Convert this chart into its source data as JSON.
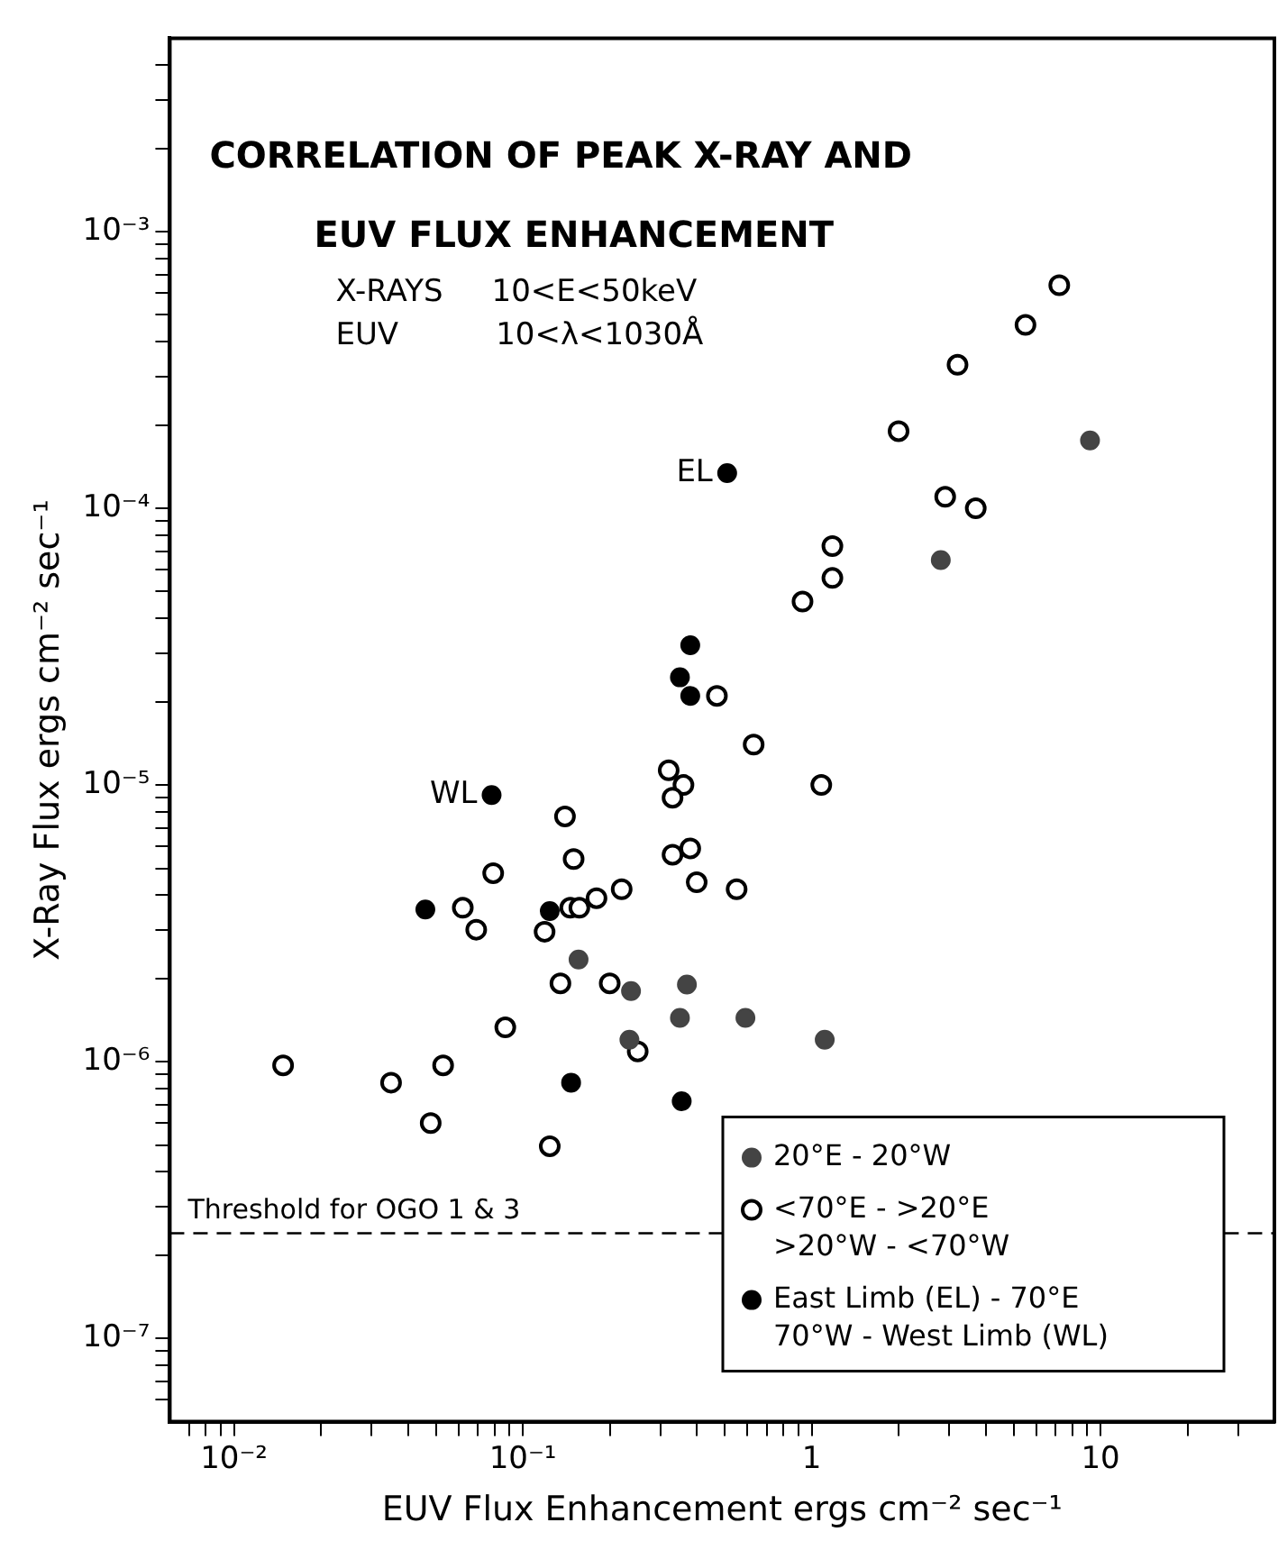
{
  "chart_data": {
    "type": "scatter",
    "title": "CORRELATION OF PEAK X-RAY AND\nEUV FLUX ENHANCEMENT",
    "xlabel": "EUV Flux Enhancement ergs cm⁻² sec⁻¹",
    "ylabel": "X-Ray Flux ergs cm⁻² sec⁻¹",
    "annotations": [
      "X-RAYS     10<E<50keV",
      "EUV          10<λ<1030Å",
      {
        "text": "EL",
        "x": 0.51,
        "y": 0.000134
      },
      {
        "text": "WL",
        "x": 0.078,
        "y": 9.2e-06
      }
    ],
    "log": "xy",
    "grid": false,
    "legend": "bottom right",
    "marker": "circle",
    "xlim": [
      0.006,
      40
    ],
    "ylim": [
      5e-08,
      0.005
    ],
    "xticks": [
      {
        "value": 0.007,
        "label": null
      },
      {
        "value": 0.008,
        "label": null
      },
      {
        "value": 0.009,
        "label": null
      },
      {
        "value": 0.01,
        "label": "10⁻²"
      },
      {
        "value": 0.02,
        "label": null
      },
      {
        "value": 0.03,
        "label": null
      },
      {
        "value": 0.04,
        "label": null
      },
      {
        "value": 0.05,
        "label": null
      },
      {
        "value": 0.06,
        "label": null
      },
      {
        "value": 0.07,
        "label": null
      },
      {
        "value": 0.08,
        "label": null
      },
      {
        "value": 0.09,
        "label": null
      },
      {
        "value": 0.1,
        "label": "10⁻¹"
      },
      {
        "value": 0.2,
        "label": null
      },
      {
        "value": 0.3,
        "label": null
      },
      {
        "value": 0.4,
        "label": null
      },
      {
        "value": 0.5,
        "label": null
      },
      {
        "value": 0.6,
        "label": null
      },
      {
        "value": 0.7,
        "label": null
      },
      {
        "value": 0.8,
        "label": null
      },
      {
        "value": 0.9,
        "label": null
      },
      1,
      {
        "value": 2,
        "label": null
      },
      {
        "value": 3,
        "label": null
      },
      {
        "value": 4,
        "label": null
      },
      {
        "value": 5,
        "label": null
      },
      {
        "value": 6,
        "label": null
      },
      {
        "value": 7,
        "label": null
      },
      {
        "value": 8,
        "label": null
      },
      {
        "value": 9,
        "label": null
      },
      10,
      {
        "value": 20,
        "label": null
      },
      {
        "value": 30,
        "label": null
      }
    ],
    "yticks": [
      {
        "value": 6e-08,
        "label": null
      },
      {
        "value": 7e-08,
        "label": null
      },
      {
        "value": 8e-08,
        "label": null
      },
      {
        "value": 9e-08,
        "label": null
      },
      {
        "value": 1e-07,
        "label": "10⁻⁷"
      },
      {
        "value": 2e-07,
        "label": null
      },
      {
        "value": 3e-07,
        "label": null
      },
      {
        "value": 4e-07,
        "label": null
      },
      {
        "value": 5e-07,
        "label": null
      },
      {
        "value": 6e-07,
        "label": null
      },
      {
        "value": 7e-07,
        "label": null
      },
      {
        "value": 8e-07,
        "label": null
      },
      {
        "value": 9e-07,
        "label": null
      },
      {
        "value": 1e-06,
        "label": "10⁻⁶"
      },
      {
        "value": 2e-06,
        "label": null
      },
      {
        "value": 3e-06,
        "label": null
      },
      {
        "value": 4e-06,
        "label": null
      },
      {
        "value": 5e-06,
        "label": null
      },
      {
        "value": 6e-06,
        "label": null
      },
      {
        "value": 7e-06,
        "label": null
      },
      {
        "value": 8e-06,
        "label": null
      },
      {
        "value": 9e-06,
        "label": null
      },
      {
        "value": 1e-05,
        "label": "10⁻⁵"
      },
      {
        "value": 2e-05,
        "label": null
      },
      {
        "value": 3e-05,
        "label": null
      },
      {
        "value": 4e-05,
        "label": null
      },
      {
        "value": 5e-05,
        "label": null
      },
      {
        "value": 6e-05,
        "label": null
      },
      {
        "value": 7e-05,
        "label": null
      },
      {
        "value": 8e-05,
        "label": null
      },
      {
        "value": 9e-05,
        "label": null
      },
      {
        "value": 0.0001,
        "label": "10⁻⁴"
      },
      {
        "value": 0.0002,
        "label": null
      },
      {
        "value": 0.0003,
        "label": null
      },
      {
        "value": 0.0004,
        "label": null
      },
      {
        "value": 0.0005,
        "label": null
      },
      {
        "value": 0.0006,
        "label": null
      },
      {
        "value": 0.0007,
        "label": null
      },
      {
        "value": 0.0008,
        "label": null
      },
      {
        "value": 0.0009,
        "label": null
      },
      {
        "value": 0.001,
        "label": "10⁻³"
      },
      {
        "value": 0.002,
        "label": null
      },
      {
        "value": 0.003,
        "label": null
      },
      {
        "value": 0.004,
        "label": null
      }
    ],
    "ref_lines": [
      {
        "axis": "y",
        "value": 2.4e-07,
        "label": "Threshold for OGO 1 & 3",
        "line_style": "dashed",
        "color": "#000000"
      }
    ],
    "series": [
      {
        "name": "20°E - 20°W",
        "color": "#444444",
        "x": [
          9.2,
          2.8,
          1.11,
          0.156,
          0.237,
          0.37,
          0.35,
          0.59,
          0.234
        ],
        "values": [
          0.000176,
          6.5e-05,
          1.2e-06,
          2.34e-06,
          1.8e-06,
          1.9e-06,
          1.44e-06,
          1.44e-06,
          1.2e-06
        ]
      },
      {
        "name": "<70°E - >20°E\n>20°W - <70°W",
        "color": "#000000",
        "marker": "circle-open",
        "x": [
          7.2,
          5.5,
          3.2,
          2.0,
          2.9,
          3.7,
          1.18,
          1.18,
          0.93,
          0.47,
          0.63,
          0.32,
          0.36,
          0.33,
          1.08,
          0.14,
          0.15,
          0.33,
          0.38,
          0.079,
          0.4,
          0.55,
          0.22,
          0.18,
          0.062,
          0.146,
          0.157,
          0.069,
          0.119,
          0.135,
          0.2,
          0.087,
          0.25,
          0.0148,
          0.053,
          0.035,
          0.048,
          0.124
        ],
        "values": [
          0.00064,
          0.00046,
          0.00033,
          0.00019,
          0.00011,
          0.0001,
          7.3e-05,
          5.6e-05,
          4.6e-05,
          2.1e-05,
          1.4e-05,
          1.13e-05,
          1e-05,
          9e-06,
          1e-05,
          7.7e-06,
          5.4e-06,
          5.6e-06,
          5.9e-06,
          4.8e-06,
          4.45e-06,
          4.2e-06,
          4.2e-06,
          3.9e-06,
          3.6e-06,
          3.6e-06,
          3.6e-06,
          3e-06,
          2.95e-06,
          1.92e-06,
          1.92e-06,
          1.33e-06,
          1.09e-06,
          9.7e-07,
          9.7e-07,
          8.4e-07,
          6e-07,
          4.95e-07
        ]
      },
      {
        "name": "East Limb (EL) - 70°E\n70°W - West Limb (WL)",
        "color": "#000000",
        "x": [
          0.51,
          0.38,
          0.35,
          0.38,
          0.078,
          0.046,
          0.124,
          0.147,
          0.355
        ],
        "values": [
          0.000134,
          3.2e-05,
          2.45e-05,
          2.1e-05,
          9.2e-06,
          3.55e-06,
          3.5e-06,
          8.4e-07,
          7.2e-07
        ]
      }
    ]
  }
}
